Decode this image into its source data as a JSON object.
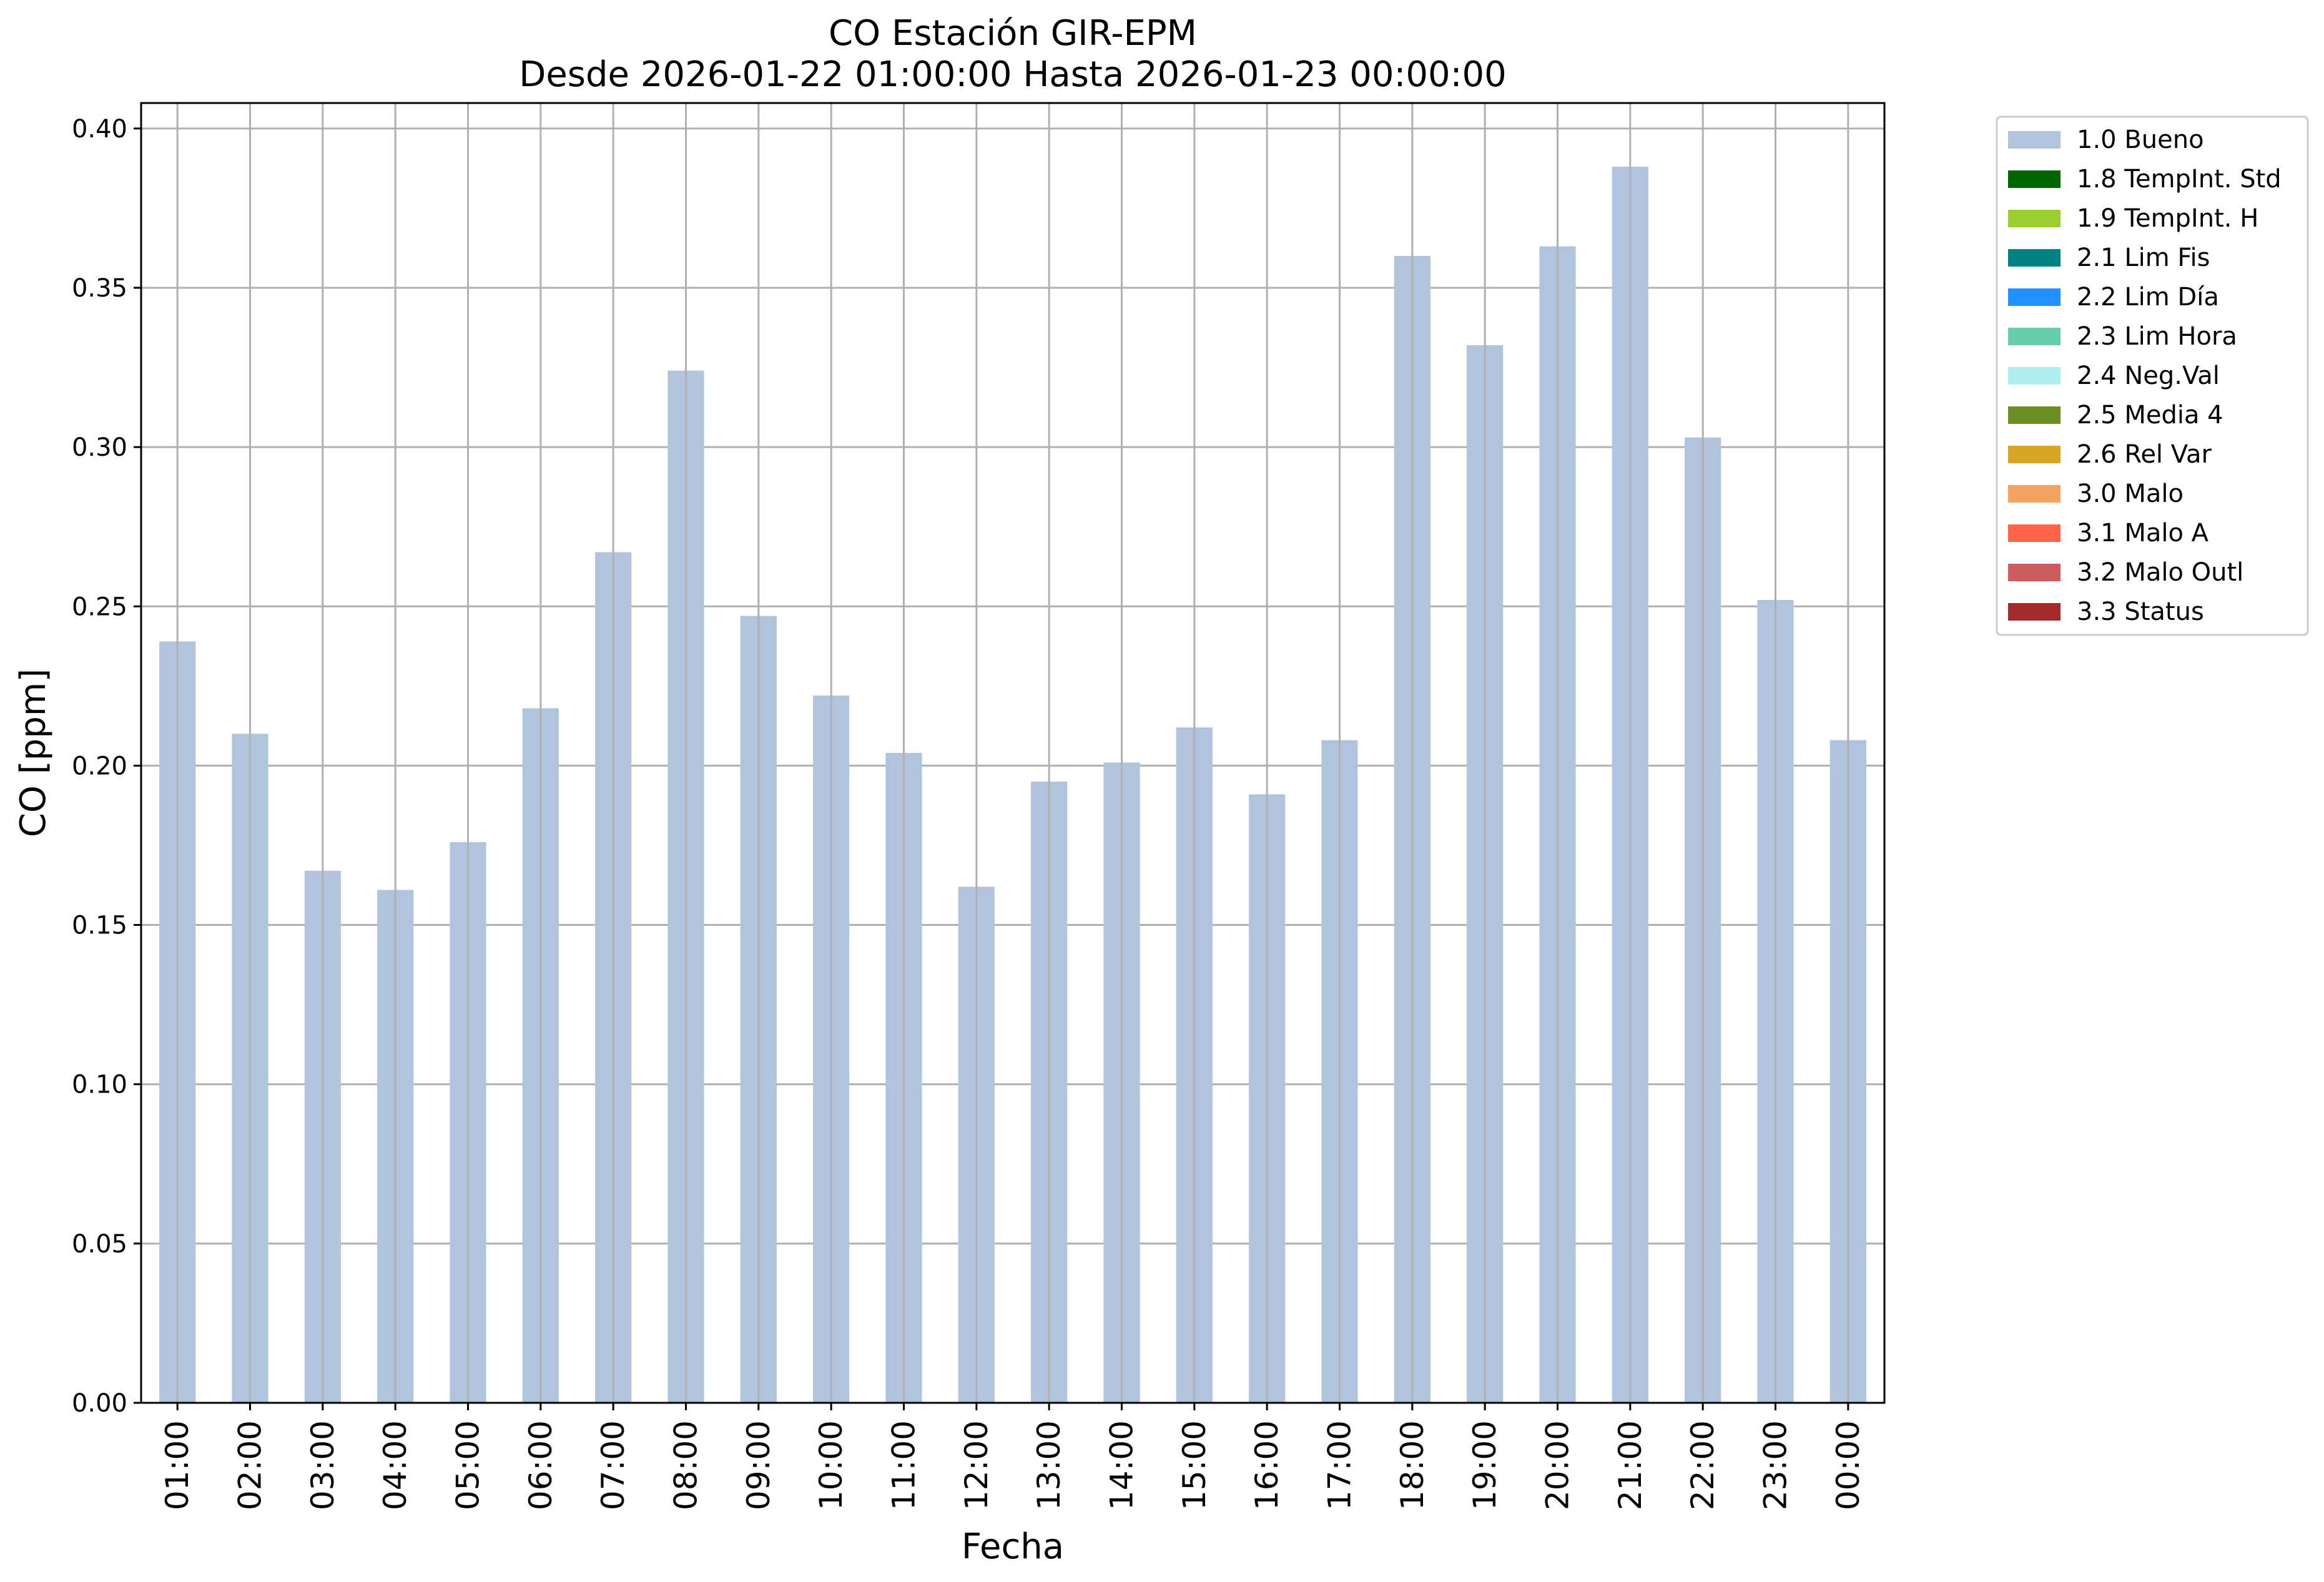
{
  "chart_data": {
    "type": "bar",
    "title": "CO Estación GIR-EPM",
    "subtitle": "Desde 2026-01-22 01:00:00 Hasta 2026-01-23 00:00:00",
    "xlabel": "Fecha",
    "ylabel": "CO [ppm]",
    "ylim": [
      0,
      0.408
    ],
    "yticks": [
      "0.00",
      "0.05",
      "0.10",
      "0.15",
      "0.20",
      "0.25",
      "0.30",
      "0.35",
      "0.40"
    ],
    "grid": true,
    "legend_position": "outside-top-right",
    "categories": [
      "01:00",
      "02:00",
      "03:00",
      "04:00",
      "05:00",
      "06:00",
      "07:00",
      "08:00",
      "09:00",
      "10:00",
      "11:00",
      "12:00",
      "13:00",
      "14:00",
      "15:00",
      "16:00",
      "17:00",
      "18:00",
      "19:00",
      "20:00",
      "21:00",
      "22:00",
      "23:00",
      "00:00"
    ],
    "series": [
      {
        "name": "1.0 Bueno",
        "color": "#b0c4de",
        "values": [
          0.239,
          0.21,
          0.167,
          0.161,
          0.176,
          0.218,
          0.267,
          0.324,
          0.247,
          0.222,
          0.204,
          0.162,
          0.195,
          0.201,
          0.212,
          0.191,
          0.208,
          0.36,
          0.332,
          0.363,
          0.388,
          0.303,
          0.252,
          0.208
        ]
      }
    ],
    "legend": [
      {
        "label": "1.0 Bueno",
        "color": "#b0c4de"
      },
      {
        "label": "1.8 TempInt. Std",
        "color": "#006400"
      },
      {
        "label": "1.9 TempInt. H",
        "color": "#9acd32"
      },
      {
        "label": "2.1 Lim Fis",
        "color": "#008080"
      },
      {
        "label": "2.2 Lim Día",
        "color": "#1e90ff"
      },
      {
        "label": "2.3 Lim Hora",
        "color": "#66cdaa"
      },
      {
        "label": "2.4 Neg.Val",
        "color": "#afeeee"
      },
      {
        "label": "2.5 Media 4",
        "color": "#6b8e23"
      },
      {
        "label": "2.6 Rel Var",
        "color": "#daa520"
      },
      {
        "label": "3.0 Malo",
        "color": "#f4a460"
      },
      {
        "label": "3.1 Malo A",
        "color": "#ff6347"
      },
      {
        "label": "3.2 Malo Outl",
        "color": "#cd5c5c"
      },
      {
        "label": "3.3 Status",
        "color": "#a52a2a"
      }
    ]
  }
}
